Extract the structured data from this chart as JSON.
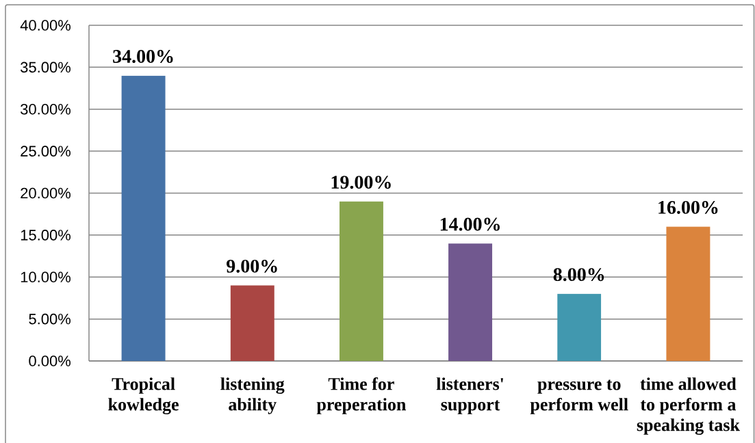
{
  "chart_data": {
    "type": "bar",
    "categories": [
      "Tropical kowledge",
      "listening ability",
      "Time for preperation",
      "listeners' support",
      "pressure to perform well",
      "time allowed to perform a speaking task"
    ],
    "values": [
      34,
      9,
      19,
      14,
      8,
      16
    ],
    "colors": [
      "#4572a7",
      "#aa4643",
      "#89a54e",
      "#71588f",
      "#4198af",
      "#db843d"
    ],
    "value_labels": [
      "34.00%",
      "9.00%",
      "19.00%",
      "14.00%",
      "8.00%",
      "16.00%"
    ],
    "ylim": [
      0,
      40
    ],
    "yticks": [
      {
        "value": 0,
        "label": "0.00%"
      },
      {
        "value": 5,
        "label": "5.00%"
      },
      {
        "value": 10,
        "label": "10.00%"
      },
      {
        "value": 15,
        "label": "15.00%"
      },
      {
        "value": 20,
        "label": "20.00%"
      },
      {
        "value": 25,
        "label": "25.00%"
      },
      {
        "value": 30,
        "label": "30.00%"
      },
      {
        "value": 35,
        "label": "35.00%"
      },
      {
        "value": 40,
        "label": "40.00%"
      }
    ],
    "grid": "y"
  }
}
